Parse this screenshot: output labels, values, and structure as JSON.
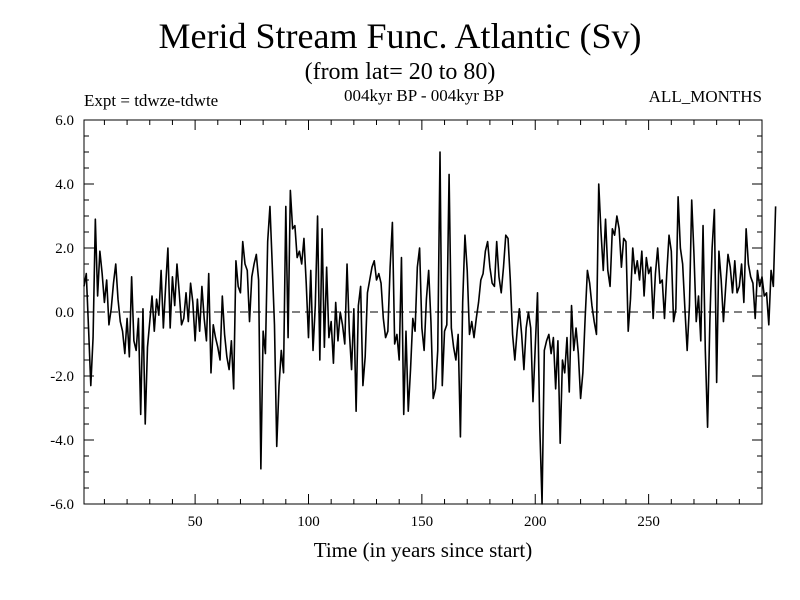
{
  "chart_data": {
    "type": "line",
    "title": "Merid Stream Func. Atlantic (Sv)",
    "subtitle": "(from lat= 20 to 80)",
    "header_left": "Expt = tdwze-tdwte",
    "header_center": "004kyr BP - 004kyr BP",
    "header_right": "ALL_MONTHS",
    "xlabel": "Time (in years since start)",
    "ylabel": "",
    "xlim": [
      1,
      300
    ],
    "ylim": [
      -6.0,
      6.0
    ],
    "x_ticks": [
      50,
      100,
      150,
      200,
      250
    ],
    "y_ticks": [
      -6.0,
      -4.0,
      -2.0,
      0.0,
      2.0,
      4.0,
      6.0
    ],
    "y_tick_labels": [
      "-6.0",
      "-4.0",
      "-2.0",
      "0.0",
      "2.0",
      "4.0",
      "6.0"
    ],
    "zero_line": "dashed",
    "grid": false,
    "series": [
      {
        "color": "#000000",
        "values": [
          0.8,
          1.2,
          -0.5,
          -2.3,
          -0.8,
          2.9,
          0.5,
          1.9,
          1.2,
          0.3,
          1.0,
          -0.4,
          0.1,
          0.9,
          1.5,
          0.4,
          -0.3,
          -0.6,
          -1.3,
          -0.2,
          -1.4,
          1.1,
          -0.9,
          -1.2,
          -0.2,
          -3.2,
          0.1,
          -3.5,
          -1.1,
          -0.3,
          0.5,
          -0.6,
          0.4,
          -0.1,
          1.3,
          -0.5,
          0.8,
          2.0,
          -0.5,
          1.1,
          0.2,
          1.5,
          0.6,
          -0.4,
          -0.2,
          0.6,
          -0.3,
          0.9,
          0.3,
          -0.9,
          0.4,
          -0.6,
          0.8,
          -0.2,
          -0.9,
          1.2,
          -1.9,
          -0.4,
          -0.8,
          -1.1,
          -1.5,
          0.5,
          -0.7,
          -1.4,
          -1.8,
          -0.9,
          -2.4,
          1.6,
          0.8,
          0.6,
          2.2,
          1.5,
          1.3,
          -0.3,
          1.1,
          1.5,
          1.8,
          1.0,
          -4.9,
          -0.6,
          -1.3,
          2.2,
          3.3,
          1.5,
          -0.4,
          -4.2,
          -2.3,
          -1.2,
          -1.9,
          3.3,
          -0.8,
          3.8,
          2.6,
          2.7,
          1.7,
          1.9,
          1.5,
          2.3,
          0.9,
          -0.8,
          1.3,
          -1.2,
          0.2,
          3.0,
          -1.5,
          2.6,
          -1.1,
          1.4,
          -0.8,
          -0.3,
          -1.6,
          0.3,
          -0.9,
          0.0,
          -0.4,
          -1.0,
          1.5,
          -0.6,
          -1.8,
          0.1,
          -3.1,
          0.2,
          0.8,
          -2.3,
          -1.4,
          0.6,
          1.0,
          1.4,
          1.6,
          1.0,
          1.2,
          0.9,
          -0.2,
          -0.8,
          -0.6,
          1.4,
          2.8,
          -1.0,
          -0.7,
          -1.5,
          1.7,
          -3.2,
          -0.6,
          -3.1,
          -1.8,
          -0.2,
          -0.6,
          1.4,
          2.0,
          -0.5,
          -1.2,
          0.4,
          1.3,
          -0.3,
          -2.7,
          -2.4,
          -1.2,
          5.0,
          -2.3,
          -0.6,
          -0.4,
          4.3,
          -0.5,
          -1.1,
          -1.5,
          -0.7,
          -3.9,
          0.3,
          2.4,
          1.3,
          -0.7,
          -0.3,
          -0.8,
          -0.2,
          0.3,
          1.0,
          1.2,
          1.9,
          2.2,
          1.4,
          0.9,
          0.8,
          2.2,
          1.1,
          0.6,
          1.4,
          2.4,
          2.3,
          1.0,
          -0.7,
          -1.5,
          -0.6,
          0.1,
          -0.7,
          -1.8,
          -0.5,
          0.0,
          -0.5,
          -2.8,
          -1.1,
          0.6,
          -3.6,
          -6.0,
          -1.2,
          -0.9,
          -0.7,
          -1.3,
          -0.8,
          -2.4,
          -0.9,
          -4.1,
          -1.5,
          -1.9,
          -0.8,
          -2.5,
          0.2,
          -1.2,
          -0.5,
          -1.3,
          -2.7,
          -1.9,
          -0.2,
          1.3,
          0.9,
          0.2,
          -0.3,
          -0.7,
          4.0,
          2.5,
          1.3,
          2.9,
          1.3,
          0.8,
          2.6,
          2.4,
          3.0,
          2.6,
          1.4,
          2.3,
          2.2,
          -0.6,
          0.4,
          2.0,
          1.2,
          1.6,
          1.0,
          1.9,
          0.5,
          1.7,
          1.2,
          1.4,
          -0.2,
          1.2,
          2.0,
          0.9,
          1.0,
          -0.2,
          1.2,
          2.4,
          1.9,
          -0.3,
          0.1,
          3.6,
          2.0,
          1.5,
          0.1,
          -1.2,
          0.2,
          3.5,
          1.8,
          -0.3,
          0.5,
          -0.9,
          2.7,
          -1.2,
          -3.6,
          -0.3,
          2.0,
          3.2,
          -2.2,
          1.9,
          1.0,
          -0.3,
          0.8,
          1.8,
          1.4,
          0.6,
          1.6,
          0.6,
          0.8,
          1.5,
          0.3,
          2.6,
          1.5,
          1.1,
          0.9,
          -0.2,
          1.3,
          0.8,
          1.1,
          0.5,
          0.6,
          -0.4,
          1.3,
          0.8,
          3.3
        ]
      }
    ]
  }
}
